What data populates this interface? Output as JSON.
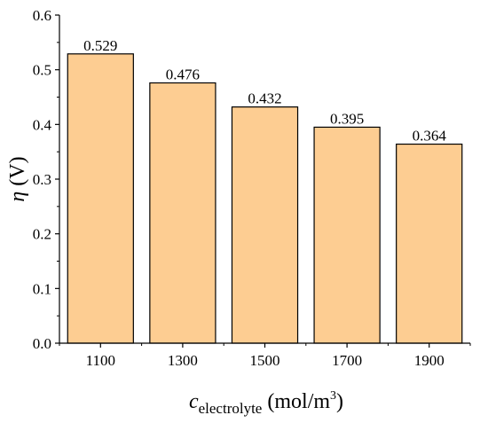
{
  "chart_data": {
    "type": "bar",
    "categories": [
      "1100",
      "1300",
      "1500",
      "1700",
      "1900"
    ],
    "values": [
      0.529,
      0.476,
      0.432,
      0.395,
      0.364
    ],
    "data_labels": [
      "0.529",
      "0.476",
      "0.432",
      "0.395",
      "0.364"
    ],
    "y_ticks": [
      "0.0",
      "0.1",
      "0.2",
      "0.3",
      "0.4",
      "0.5",
      "0.6"
    ],
    "ylim": [
      0,
      0.6
    ],
    "grid": false,
    "bar_color": "#fdcd92",
    "bar_edge_color": "#000000",
    "xlabel": {
      "symbol": "c",
      "subscript": "electrolyte",
      "unit": " (mol/m",
      "superscript": "3",
      "close": ")"
    },
    "ylabel": {
      "symbol": "η",
      "unit": " (V)"
    }
  }
}
